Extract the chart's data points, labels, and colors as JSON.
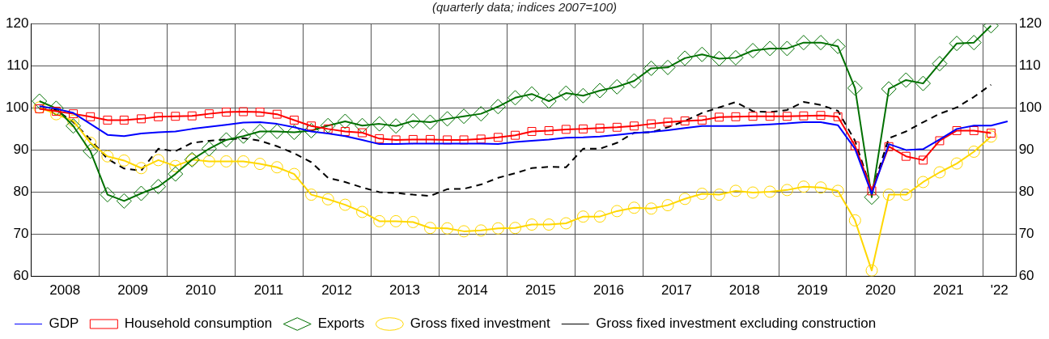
{
  "chart_data": {
    "type": "line",
    "subtitle": "(quarterly data; indices 2007=100)",
    "x": [
      "2008-02-15",
      "2008-05-15",
      "2008-08-15",
      "2008-11-15",
      "2009-02-15",
      "2009-05-15",
      "2009-08-15",
      "2009-11-15",
      "2010-02-15",
      "2010-05-15",
      "2010-08-15",
      "2010-11-15",
      "2011-02-15",
      "2011-05-15",
      "2011-08-15",
      "2011-11-15",
      "2012-02-15",
      "2012-05-15",
      "2012-08-15",
      "2012-11-15",
      "2013-02-15",
      "2013-05-15",
      "2013-08-15",
      "2013-11-15",
      "2014-02-15",
      "2014-05-15",
      "2014-08-15",
      "2014-11-15",
      "2015-02-15",
      "2015-05-15",
      "2015-08-15",
      "2015-11-15",
      "2016-02-15",
      "2016-05-15",
      "2016-08-15",
      "2016-11-15",
      "2017-02-15",
      "2017-05-15",
      "2017-08-15",
      "2017-11-15",
      "2018-02-15",
      "2018-05-15",
      "2018-08-15",
      "2018-11-15",
      "2019-02-15",
      "2019-05-15",
      "2019-08-15",
      "2019-11-15",
      "2020-02-15",
      "2020-05-15",
      "2020-08-15",
      "2020-11-15",
      "2021-02-15",
      "2021-05-15",
      "2021-08-15",
      "2021-11-15",
      "2022-02-15",
      "2022-05-15"
    ],
    "series": [
      {
        "name": "GDP",
        "color": "#0000ff",
        "marker": "none",
        "line_style": "solid",
        "values": [
          100.4,
          99.8,
          98.8,
          96.2,
          93.6,
          93.3,
          93.9,
          94.2,
          94.4,
          95.0,
          95.5,
          96.0,
          96.5,
          96.6,
          96.2,
          95.4,
          94.4,
          93.9,
          93.3,
          92.4,
          91.4,
          91.4,
          91.5,
          91.5,
          91.5,
          91.5,
          91.5,
          91.4,
          91.9,
          92.2,
          92.5,
          92.9,
          93.0,
          93.2,
          93.6,
          94.0,
          94.3,
          94.7,
          95.2,
          95.7,
          95.7,
          95.7,
          95.9,
          96.1,
          96.3,
          96.6,
          96.6,
          95.9,
          90.3,
          79.6,
          91.4,
          90.0,
          90.2,
          92.5,
          95.0,
          95.8,
          95.8,
          96.8
        ]
      },
      {
        "name": "Household consumption",
        "color": "#ff0000",
        "marker": "square",
        "line_style": "solid",
        "values": [
          99.8,
          99.2,
          98.6,
          97.9,
          97.1,
          97.1,
          97.4,
          97.9,
          98.0,
          98.1,
          98.6,
          99.0,
          99.1,
          99.0,
          98.5,
          97.1,
          95.7,
          95.0,
          94.4,
          94.1,
          92.7,
          92.4,
          92.5,
          92.5,
          92.4,
          92.4,
          92.6,
          93.0,
          93.5,
          94.4,
          94.6,
          94.9,
          95.0,
          95.2,
          95.4,
          95.7,
          96.2,
          96.6,
          96.9,
          97.1,
          97.8,
          97.9,
          98.0,
          98.0,
          98.0,
          98.1,
          98.2,
          97.9,
          91.0,
          80.3,
          90.8,
          88.5,
          87.6,
          92.2,
          94.6,
          94.6,
          94.0,
          null
        ]
      },
      {
        "name": "Exports",
        "color": "#007000",
        "marker": "diamond",
        "line_style": "solid",
        "values": [
          101.6,
          99.9,
          95.7,
          89.7,
          79.4,
          77.9,
          79.7,
          81.3,
          84.3,
          87.7,
          90.3,
          92.4,
          93.3,
          94.4,
          94.4,
          94.2,
          94.6,
          95.8,
          96.8,
          95.8,
          96.2,
          95.7,
          96.9,
          96.6,
          97.4,
          98.0,
          98.6,
          100.3,
          102.4,
          103.3,
          101.6,
          103.5,
          102.9,
          104.1,
          105.0,
          106.4,
          109.4,
          109.6,
          111.8,
          112.7,
          111.7,
          111.9,
          113.6,
          114.1,
          114.1,
          115.5,
          115.5,
          114.6,
          104.7,
          78.8,
          104.5,
          106.6,
          105.8,
          110.5,
          115.3,
          115.5,
          119.5,
          null
        ]
      },
      {
        "name": "Gross fixed investment",
        "color": "#ffd700",
        "marker": "circle",
        "line_style": "solid",
        "values": [
          100.1,
          98.5,
          96.9,
          91.7,
          88.5,
          87.5,
          85.7,
          87.6,
          86.2,
          87.7,
          87.3,
          87.3,
          87.3,
          86.7,
          85.9,
          84.3,
          79.4,
          78.3,
          77.0,
          75.3,
          73.1,
          73.1,
          72.9,
          71.5,
          71.4,
          70.7,
          70.9,
          71.4,
          71.5,
          72.3,
          72.3,
          72.6,
          74.2,
          74.2,
          75.5,
          76.3,
          76.1,
          76.9,
          78.4,
          79.6,
          79.4,
          80.3,
          79.9,
          80.1,
          80.5,
          81.3,
          81.1,
          80.3,
          73.3,
          61.4,
          79.4,
          79.4,
          82.4,
          84.7,
          86.8,
          89.6,
          93.2,
          null
        ]
      },
      {
        "name": "Gross fixed investment excluding construction",
        "color": "#000000",
        "marker": "none",
        "line_style": "dashed",
        "values": [
          99.8,
          99.5,
          96.6,
          92.5,
          87.9,
          85.6,
          85.1,
          90.3,
          89.7,
          91.7,
          92.2,
          92.5,
          92.8,
          92.2,
          90.9,
          89.2,
          87.1,
          83.4,
          82.4,
          81.1,
          80.0,
          79.8,
          79.4,
          79.1,
          80.7,
          80.8,
          81.8,
          83.4,
          84.5,
          85.7,
          86.0,
          85.9,
          90.3,
          90.3,
          91.7,
          94.1,
          94.2,
          95.4,
          96.9,
          98.8,
          100.1,
          101.4,
          99.2,
          99.0,
          99.5,
          101.4,
          100.7,
          99.3,
          92.2,
          80.2,
          92.8,
          94.4,
          96.6,
          98.6,
          100.1,
          102.6,
          105.5,
          null
        ]
      }
    ],
    "xlim": [
      "2008-01-01",
      "2022-07-01"
    ],
    "xticks": [
      {
        "value": "2008-07-01",
        "label": "2008"
      },
      {
        "value": "2009-01-01",
        "label": null
      },
      {
        "value": "2009-07-01",
        "label": "2009"
      },
      {
        "value": "2010-01-01",
        "label": null
      },
      {
        "value": "2010-07-01",
        "label": "2010"
      },
      {
        "value": "2011-01-01",
        "label": null
      },
      {
        "value": "2011-07-01",
        "label": "2011"
      },
      {
        "value": "2012-01-01",
        "label": null
      },
      {
        "value": "2012-07-01",
        "label": "2012"
      },
      {
        "value": "2013-01-01",
        "label": null
      },
      {
        "value": "2013-07-01",
        "label": "2013"
      },
      {
        "value": "2014-01-01",
        "label": null
      },
      {
        "value": "2014-07-01",
        "label": "2014"
      },
      {
        "value": "2015-01-01",
        "label": null
      },
      {
        "value": "2015-07-01",
        "label": "2015"
      },
      {
        "value": "2016-01-01",
        "label": null
      },
      {
        "value": "2016-07-01",
        "label": "2016"
      },
      {
        "value": "2017-01-01",
        "label": null
      },
      {
        "value": "2017-07-01",
        "label": "2017"
      },
      {
        "value": "2018-01-01",
        "label": null
      },
      {
        "value": "2018-07-01",
        "label": "2018"
      },
      {
        "value": "2019-01-01",
        "label": null
      },
      {
        "value": "2019-07-01",
        "label": "2019"
      },
      {
        "value": "2020-01-01",
        "label": null
      },
      {
        "value": "2020-07-01",
        "label": "2020"
      },
      {
        "value": "2021-01-01",
        "label": null
      },
      {
        "value": "2021-07-01",
        "label": "2021"
      },
      {
        "value": "2022-01-01",
        "label": null
      },
      {
        "value": "2022-04-01",
        "label": "'22"
      }
    ],
    "ylim": [
      60,
      120
    ],
    "yticks": [
      60,
      70,
      80,
      90,
      100,
      110,
      120
    ],
    "y2lim": [
      60,
      120
    ],
    "y2ticks": [
      60,
      70,
      80,
      90,
      100,
      110,
      120
    ],
    "grid": true,
    "legend": "bottom"
  }
}
